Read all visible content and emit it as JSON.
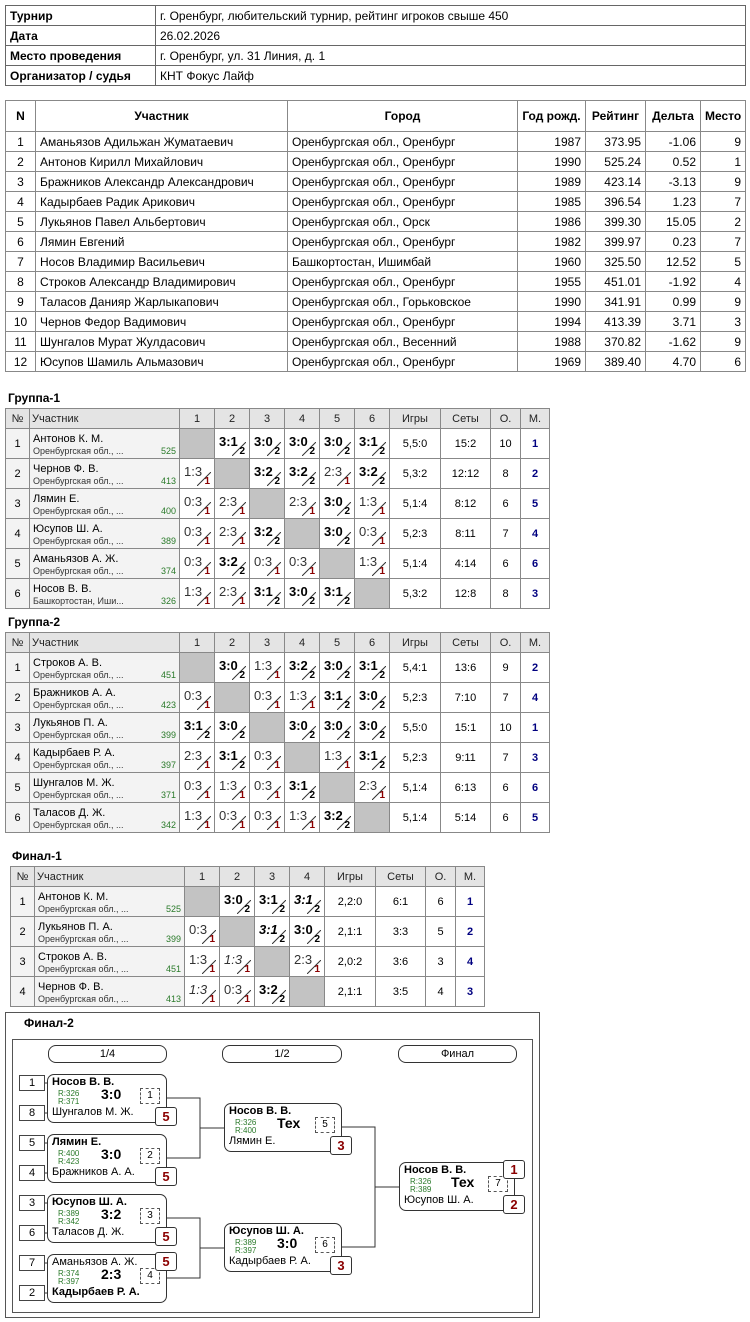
{
  "info": [
    [
      "Турнир",
      "г. Оренбург,  любительский турнир, рейтинг игроков свыше 450"
    ],
    [
      "Дата",
      "26.02.2026"
    ],
    [
      "Место проведения",
      "г. Оренбург, ул. 31 Линия, д. 1"
    ],
    [
      "Организатор / судья",
      "КНТ Фокус Лайф"
    ]
  ],
  "players": {
    "header": [
      "N",
      "Участник",
      "Город",
      "Год рожд.",
      "Рейтинг",
      "Дельта",
      "Место"
    ],
    "rows": [
      [
        "1",
        "Аманьязов Адильжан Жуматаевич",
        "Оренбургская обл., Оренбург",
        "1987",
        "373.95",
        "-1.06",
        "9"
      ],
      [
        "2",
        "Антонов Кирилл Михайлович",
        "Оренбургская обл., Оренбург",
        "1990",
        "525.24",
        "0.52",
        "1"
      ],
      [
        "3",
        "Бражников Александр Александрович",
        "Оренбургская обл., Оренбург",
        "1989",
        "423.14",
        "-3.13",
        "9"
      ],
      [
        "4",
        "Кадырбаев Радик Арикович",
        "Оренбургская обл., Оренбург",
        "1985",
        "396.54",
        "1.23",
        "7"
      ],
      [
        "5",
        "Лукьянов Павел Альбертович",
        "Оренбургская обл., Орск",
        "1986",
        "399.30",
        "15.05",
        "2"
      ],
      [
        "6",
        "Лямин Евгений",
        "Оренбургская обл., Оренбург",
        "1982",
        "399.97",
        "0.23",
        "7"
      ],
      [
        "7",
        "Носов Владимир Васильевич",
        "Башкортостан, Ишимбай",
        "1960",
        "325.50",
        "12.52",
        "5"
      ],
      [
        "8",
        "Строков Александр Владимирович",
        "Оренбургская обл., Оренбург",
        "1955",
        "451.01",
        "-1.92",
        "4"
      ],
      [
        "9",
        "Таласов Данияр Жарлыкапович",
        "Оренбургская обл., Горьковское",
        "1990",
        "341.91",
        "0.99",
        "9"
      ],
      [
        "10",
        "Чернов Федор Вадимович",
        "Оренбургская обл., Оренбург",
        "1994",
        "413.39",
        "3.71",
        "3"
      ],
      [
        "11",
        "Шунгалов Мурат Жулдасович",
        "Оренбургская обл., Весенний",
        "1988",
        "370.82",
        "-1.62",
        "9"
      ],
      [
        "12",
        "Юсупов Шамиль Альмазович",
        "Оренбургская обл., Оренбург",
        "1969",
        "389.40",
        "4.70",
        "6"
      ]
    ]
  },
  "groups": [
    {
      "title": "Группа-1",
      "header": [
        "№",
        "Участник",
        "1",
        "2",
        "3",
        "4",
        "5",
        "6",
        "Игры",
        "Сеты",
        "О.",
        "М."
      ],
      "rows": [
        {
          "n": "1",
          "name": "Антонов К. М.",
          "region": "Оренбургская обл., ...",
          "rating": "525",
          "cells": [
            null,
            {
              "score": "3:1",
              "points": "2"
            },
            {
              "score": "3:0",
              "points": "2"
            },
            {
              "score": "3:0",
              "points": "2"
            },
            {
              "score": "3:0",
              "points": "2"
            },
            {
              "score": "3:1",
              "points": "2"
            }
          ],
          "games": "5,5:0",
          "sets": "15:2",
          "points": "10",
          "place": "1"
        },
        {
          "n": "2",
          "name": "Чернов Ф. В.",
          "region": "Оренбургская обл., ...",
          "rating": "413",
          "cells": [
            {
              "score": "1:3",
              "points": "1"
            },
            null,
            {
              "score": "3:2",
              "points": "2"
            },
            {
              "score": "3:2",
              "points": "2"
            },
            {
              "score": "2:3",
              "points": "1"
            },
            {
              "score": "3:2",
              "points": "2"
            }
          ],
          "games": "5,3:2",
          "sets": "12:12",
          "points": "8",
          "place": "2"
        },
        {
          "n": "3",
          "name": "Лямин Е.",
          "region": "Оренбургская обл., ...",
          "rating": "400",
          "cells": [
            {
              "score": "0:3",
              "points": "1"
            },
            {
              "score": "2:3",
              "points": "1"
            },
            null,
            {
              "score": "2:3",
              "points": "1"
            },
            {
              "score": "3:0",
              "points": "2"
            },
            {
              "score": "1:3",
              "points": "1"
            }
          ],
          "games": "5,1:4",
          "sets": "8:12",
          "points": "6",
          "place": "5"
        },
        {
          "n": "4",
          "name": "Юсупов Ш. А.",
          "region": "Оренбургская обл., ...",
          "rating": "389",
          "cells": [
            {
              "score": "0:3",
              "points": "1"
            },
            {
              "score": "2:3",
              "points": "1"
            },
            {
              "score": "3:2",
              "points": "2"
            },
            null,
            {
              "score": "3:0",
              "points": "2"
            },
            {
              "score": "0:3",
              "points": "1"
            }
          ],
          "games": "5,2:3",
          "sets": "8:11",
          "points": "7",
          "place": "4"
        },
        {
          "n": "5",
          "name": "Аманьязов А. Ж.",
          "region": "Оренбургская обл., ...",
          "rating": "374",
          "cells": [
            {
              "score": "0:3",
              "points": "1"
            },
            {
              "score": "3:2",
              "points": "2"
            },
            {
              "score": "0:3",
              "points": "1"
            },
            {
              "score": "0:3",
              "points": "1"
            },
            null,
            {
              "score": "1:3",
              "points": "1"
            }
          ],
          "games": "5,1:4",
          "sets": "4:14",
          "points": "6",
          "place": "6"
        },
        {
          "n": "6",
          "name": "Носов В. В.",
          "region": "Башкортостан, Иши...",
          "rating": "326",
          "cells": [
            {
              "score": "1:3",
              "points": "1"
            },
            {
              "score": "2:3",
              "points": "1"
            },
            {
              "score": "3:1",
              "points": "2"
            },
            {
              "score": "3:0",
              "points": "2"
            },
            {
              "score": "3:1",
              "points": "2"
            },
            null
          ],
          "games": "5,3:2",
          "sets": "12:8",
          "points": "8",
          "place": "3"
        }
      ]
    },
    {
      "title": "Группа-2",
      "header": [
        "№",
        "Участник",
        "1",
        "2",
        "3",
        "4",
        "5",
        "6",
        "Игры",
        "Сеты",
        "О.",
        "М."
      ],
      "rows": [
        {
          "n": "1",
          "name": "Строков А. В.",
          "region": "Оренбургская обл., ...",
          "rating": "451",
          "cells": [
            null,
            {
              "score": "3:0",
              "points": "2"
            },
            {
              "score": "1:3",
              "points": "1"
            },
            {
              "score": "3:2",
              "points": "2"
            },
            {
              "score": "3:0",
              "points": "2"
            },
            {
              "score": "3:1",
              "points": "2"
            }
          ],
          "games": "5,4:1",
          "sets": "13:6",
          "points": "9",
          "place": "2"
        },
        {
          "n": "2",
          "name": "Бражников А. А.",
          "region": "Оренбургская обл., ...",
          "rating": "423",
          "cells": [
            {
              "score": "0:3",
              "points": "1"
            },
            null,
            {
              "score": "0:3",
              "points": "1"
            },
            {
              "score": "1:3",
              "points": "1"
            },
            {
              "score": "3:1",
              "points": "2"
            },
            {
              "score": "3:0",
              "points": "2"
            }
          ],
          "games": "5,2:3",
          "sets": "7:10",
          "points": "7",
          "place": "4"
        },
        {
          "n": "3",
          "name": "Лукьянов П. А.",
          "region": "Оренбургская обл., ...",
          "rating": "399",
          "cells": [
            {
              "score": "3:1",
              "points": "2"
            },
            {
              "score": "3:0",
              "points": "2"
            },
            null,
            {
              "score": "3:0",
              "points": "2"
            },
            {
              "score": "3:0",
              "points": "2"
            },
            {
              "score": "3:0",
              "points": "2"
            }
          ],
          "games": "5,5:0",
          "sets": "15:1",
          "points": "10",
          "place": "1"
        },
        {
          "n": "4",
          "name": "Кадырбаев Р. А.",
          "region": "Оренбургская обл., ...",
          "rating": "397",
          "cells": [
            {
              "score": "2:3",
              "points": "1"
            },
            {
              "score": "3:1",
              "points": "2"
            },
            {
              "score": "0:3",
              "points": "1"
            },
            null,
            {
              "score": "1:3",
              "points": "1"
            },
            {
              "score": "3:1",
              "points": "2"
            }
          ],
          "games": "5,2:3",
          "sets": "9:11",
          "points": "7",
          "place": "3"
        },
        {
          "n": "5",
          "name": "Шунгалов М. Ж.",
          "region": "Оренбургская обл., ...",
          "rating": "371",
          "cells": [
            {
              "score": "0:3",
              "points": "1"
            },
            {
              "score": "1:3",
              "points": "1"
            },
            {
              "score": "0:3",
              "points": "1"
            },
            {
              "score": "3:1",
              "points": "2"
            },
            null,
            {
              "score": "2:3",
              "points": "1"
            }
          ],
          "games": "5,1:4",
          "sets": "6:13",
          "points": "6",
          "place": "6"
        },
        {
          "n": "6",
          "name": "Таласов Д. Ж.",
          "region": "Оренбургская обл., ...",
          "rating": "342",
          "cells": [
            {
              "score": "1:3",
              "points": "1"
            },
            {
              "score": "0:3",
              "points": "1"
            },
            {
              "score": "0:3",
              "points": "1"
            },
            {
              "score": "1:3",
              "points": "1"
            },
            {
              "score": "3:2",
              "points": "2"
            },
            null
          ],
          "games": "5,1:4",
          "sets": "5:14",
          "points": "6",
          "place": "5"
        }
      ]
    },
    {
      "title": "Финал-1",
      "header": [
        "№",
        "Участник",
        "1",
        "2",
        "3",
        "4",
        "Игры",
        "Сеты",
        "О.",
        "М."
      ],
      "rows": [
        {
          "n": "1",
          "name": "Антонов К. М.",
          "region": "Оренбургская обл., ...",
          "rating": "525",
          "cells": [
            null,
            {
              "score": "3:0",
              "points": "2"
            },
            {
              "score": "3:1",
              "points": "2"
            },
            {
              "score": "3:1",
              "points": "2",
              "italic": true
            }
          ],
          "games": "2,2:0",
          "sets": "6:1",
          "points": "6",
          "place": "1"
        },
        {
          "n": "2",
          "name": "Лукьянов П. А.",
          "region": "Оренбургская обл., ...",
          "rating": "399",
          "cells": [
            {
              "score": "0:3",
              "points": "1"
            },
            null,
            {
              "score": "3:1",
              "points": "2",
              "italic": true
            },
            {
              "score": "3:0",
              "points": "2"
            }
          ],
          "games": "2,1:1",
          "sets": "3:3",
          "points": "5",
          "place": "2"
        },
        {
          "n": "3",
          "name": "Строков А. В.",
          "region": "Оренбургская обл., ...",
          "rating": "451",
          "cells": [
            {
              "score": "1:3",
              "points": "1"
            },
            {
              "score": "1:3",
              "points": "1",
              "italic": true
            },
            null,
            {
              "score": "2:3",
              "points": "1"
            }
          ],
          "games": "2,0:2",
          "sets": "3:6",
          "points": "3",
          "place": "4"
        },
        {
          "n": "4",
          "name": "Чернов Ф. В.",
          "region": "Оренбургская обл., ...",
          "rating": "413",
          "cells": [
            {
              "score": "1:3",
              "points": "1",
              "italic": true
            },
            {
              "score": "0:3",
              "points": "1"
            },
            {
              "score": "3:2",
              "points": "2"
            },
            null
          ],
          "games": "2,1:1",
          "sets": "3:5",
          "points": "4",
          "place": "3"
        }
      ]
    }
  ],
  "bracket": {
    "title": "Финал-2",
    "rounds": [
      "1/4",
      "1/2",
      "Финал"
    ],
    "matches": [
      {
        "seeds": [
          "1",
          "8"
        ],
        "players": [
          "Носов В. В.",
          "Шунгалов М. Ж."
        ],
        "ratings": [
          "R:326",
          "R:371"
        ],
        "score": "3:0",
        "number": "1",
        "winner": 0,
        "places": [
          null,
          "5"
        ]
      },
      {
        "seeds": [
          "5",
          "4"
        ],
        "players": [
          "Лямин Е.",
          "Бражников А. А."
        ],
        "ratings": [
          "R:400",
          "R:423"
        ],
        "score": "3:0",
        "number": "2",
        "winner": 0,
        "places": [
          null,
          "5"
        ]
      },
      {
        "seeds": [
          "3",
          "6"
        ],
        "players": [
          "Юсупов Ш. А.",
          "Таласов Д. Ж."
        ],
        "ratings": [
          "R:389",
          "R:342"
        ],
        "score": "3:2",
        "number": "3",
        "winner": 0,
        "places": [
          null,
          "5"
        ]
      },
      {
        "seeds": [
          "7",
          "2"
        ],
        "players": [
          "Аманьязов А. Ж.",
          "Кадырбаев Р. А."
        ],
        "ratings": [
          "R:374",
          "R:397"
        ],
        "score": "2:3",
        "number": "4",
        "winner": 1,
        "places": [
          "5",
          null
        ]
      },
      {
        "players": [
          "Носов В. В.",
          "Лямин Е."
        ],
        "ratings": [
          "R:326",
          "R:400"
        ],
        "score": "Тех",
        "number": "5",
        "winner": 0,
        "places": [
          null,
          "3"
        ]
      },
      {
        "players": [
          "Юсупов Ш. А.",
          "Кадырбаев Р. А."
        ],
        "ratings": [
          "R:389",
          "R:397"
        ],
        "score": "3:0",
        "number": "6",
        "winner": 0,
        "places": [
          null,
          "3"
        ]
      },
      {
        "players": [
          "Носов В. В.",
          "Юсупов Ш. А."
        ],
        "ratings": [
          "R:326",
          "R:389"
        ],
        "score": "Тех",
        "number": "7",
        "winner": 0,
        "places": [
          "1",
          "2"
        ]
      }
    ]
  }
}
